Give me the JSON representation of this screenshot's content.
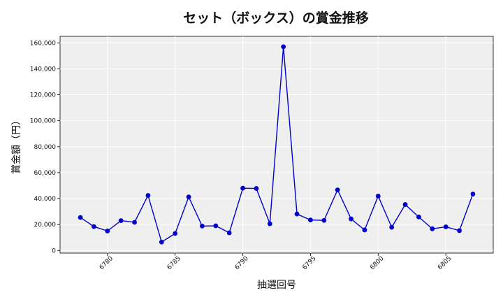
{
  "chart_data": {
    "type": "line",
    "title": "セット（ボックス）の賞金推移",
    "xlabel": "抽選回号",
    "ylabel": "賞金額（円）",
    "xlim": [
      6776.5,
      6808.5
    ],
    "ylim": [
      -2000,
      165000
    ],
    "xticks": [
      6780,
      6785,
      6790,
      6795,
      6800,
      6805
    ],
    "yticks": [
      0,
      20000,
      40000,
      60000,
      80000,
      100000,
      120000,
      140000,
      160000
    ],
    "xtick_labels": [
      "6780",
      "6785",
      "6790",
      "6795",
      "6800",
      "6805"
    ],
    "ytick_labels": [
      "0",
      "20,000",
      "40,000",
      "60,000",
      "80,000",
      "100,000",
      "120,000",
      "140,000",
      "160,000"
    ],
    "grid": true,
    "series_color": "#0000cc",
    "background_color": "#efefef",
    "series": [
      {
        "x": [
          6778,
          6779,
          6780,
          6781,
          6782,
          6783,
          6784,
          6785,
          6786,
          6787,
          6788,
          6789,
          6790,
          6791,
          6792,
          6793,
          6794,
          6795,
          6796,
          6797,
          6798,
          6799,
          6800,
          6801,
          6802,
          6803,
          6804,
          6805,
          6806,
          6807
        ],
        "y": [
          25400,
          18400,
          15000,
          23000,
          21700,
          42400,
          6500,
          13100,
          41300,
          18800,
          19000,
          13600,
          48000,
          47800,
          20600,
          157000,
          28100,
          23500,
          23200,
          46700,
          24300,
          15800,
          41900,
          17900,
          35400,
          25800,
          16700,
          18200,
          15300,
          43500
        ]
      }
    ]
  }
}
